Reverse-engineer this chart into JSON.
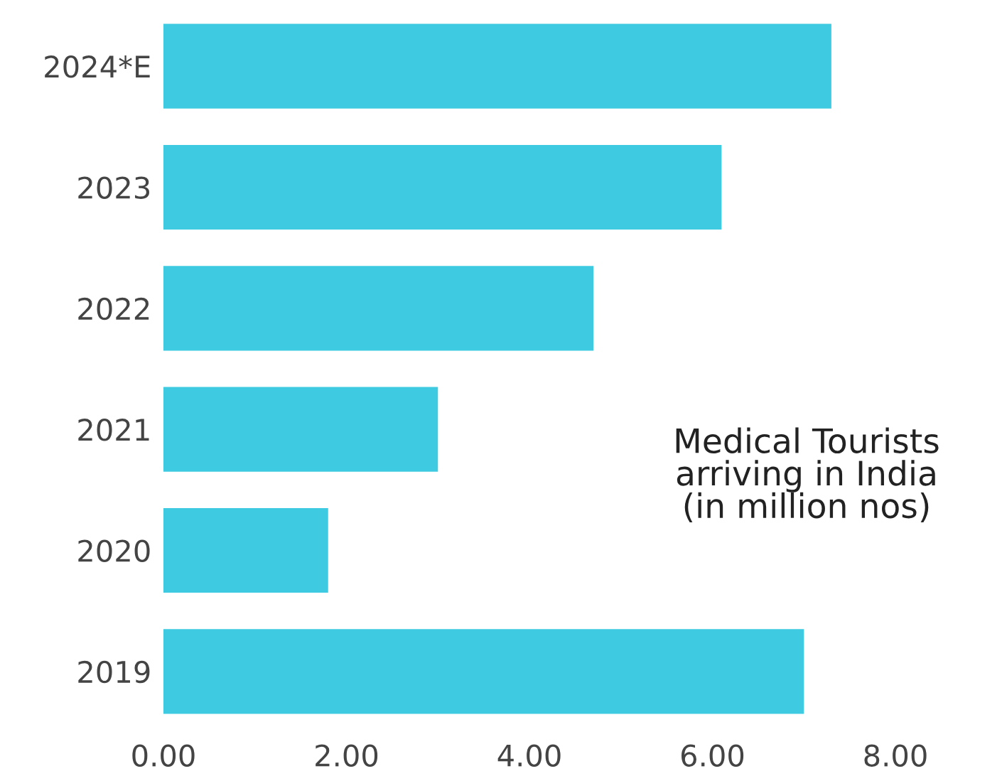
{
  "chart_data": {
    "type": "bar",
    "orientation": "horizontal",
    "title": "Medical Tourists\narriving in India\n(in million nos)",
    "categories": [
      "2024*E",
      "2023",
      "2022",
      "2021",
      "2020",
      "2019"
    ],
    "values": [
      7.3,
      6.1,
      4.7,
      3.0,
      1.8,
      7.0
    ],
    "color": "#3ecbe2",
    "xlim": [
      0,
      8
    ],
    "xticks": [
      {
        "value": 0,
        "label": "0.00"
      },
      {
        "value": 2,
        "label": "2.00"
      },
      {
        "value": 4,
        "label": "4.00"
      },
      {
        "value": 6,
        "label": "6.00"
      },
      {
        "value": 8,
        "label": "8.00"
      }
    ],
    "grid": false
  }
}
